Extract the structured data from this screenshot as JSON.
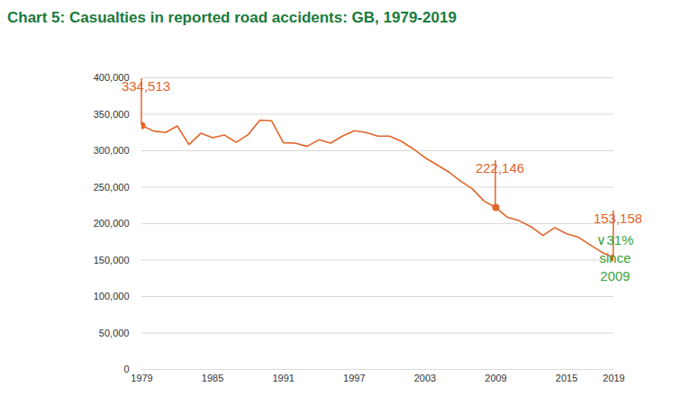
{
  "chart_data": {
    "type": "line",
    "title": "Chart 5:  Casualties in reported road accidents: GB, 1979-2019",
    "x": [
      1979,
      1980,
      1981,
      1982,
      1983,
      1984,
      1985,
      1986,
      1987,
      1988,
      1989,
      1990,
      1991,
      1992,
      1993,
      1994,
      1995,
      1996,
      1997,
      1998,
      1999,
      2000,
      2001,
      2002,
      2003,
      2004,
      2005,
      2006,
      2007,
      2008,
      2009,
      2010,
      2011,
      2012,
      2013,
      2014,
      2015,
      2016,
      2017,
      2018,
      2019
    ],
    "values": [
      334513,
      327000,
      325000,
      334000,
      308500,
      324000,
      318000,
      321500,
      311500,
      322000,
      342000,
      341000,
      311000,
      310500,
      306000,
      315000,
      310500,
      320000,
      327500,
      325000,
      320000,
      320000,
      313000,
      302500,
      290500,
      280800,
      271000,
      258400,
      248000,
      231000,
      222146,
      208600,
      203900,
      195700,
      183700,
      194500,
      186200,
      181400,
      170900,
      160600,
      153158
    ],
    "color": "#e0662a",
    "xlim": [
      1979,
      2019
    ],
    "xticks": [
      1979,
      1985,
      1991,
      1997,
      2003,
      2009,
      2015,
      2019
    ],
    "ylim": [
      0,
      400000
    ],
    "yticks": [
      0,
      {
        "value": 50000,
        "label": "50,000"
      },
      {
        "value": 100000,
        "label": "100,000"
      },
      {
        "value": 150000,
        "label": "150,000"
      },
      {
        "value": 200000,
        "label": "200,000"
      },
      {
        "value": 250000,
        "label": "250,000"
      },
      {
        "value": 300000,
        "label": "300,000"
      },
      {
        "value": 350000,
        "label": "350,000"
      },
      {
        "value": 400000,
        "label": "400,000"
      }
    ],
    "grid": true,
    "annotations": [
      {
        "x": 1979,
        "label": "334,513"
      },
      {
        "x": 2009,
        "label": "222,146"
      },
      {
        "x": 2019,
        "label": "153,158",
        "note": {
          "lines": [
            "∨31%",
            "since",
            "2009"
          ],
          "color": "#3aa53a"
        }
      }
    ]
  }
}
